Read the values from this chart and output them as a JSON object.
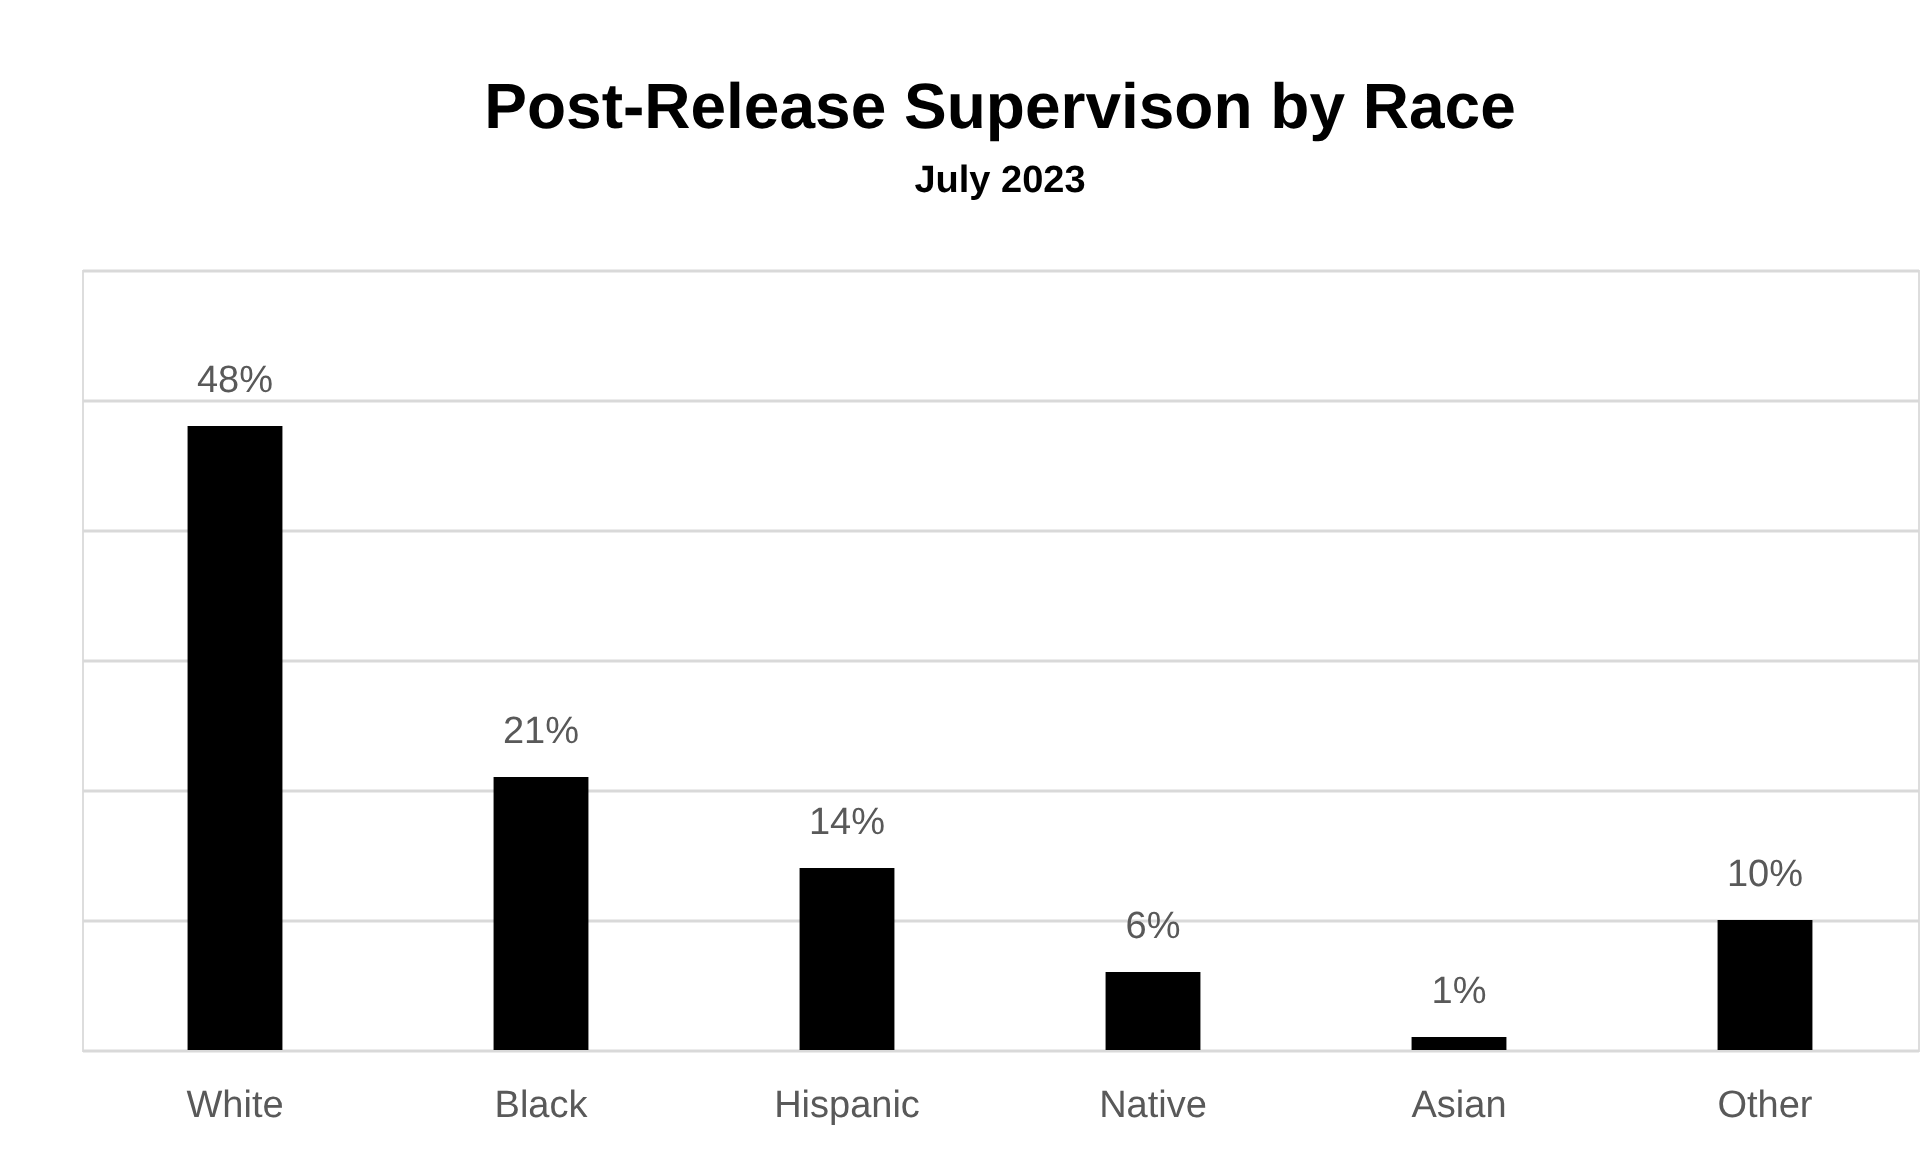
{
  "chart_data": {
    "type": "bar",
    "title": "Post-Release Supervison by Race",
    "subtitle": "July 2023",
    "categories": [
      "White",
      "Black",
      "Hispanic",
      "Native",
      "Asian",
      "Other"
    ],
    "values": [
      48,
      21,
      14,
      6,
      1,
      10
    ],
    "color": "#000000",
    "value_labels": [
      "48%",
      "21%",
      "14%",
      "6%",
      "1%",
      "10%"
    ],
    "ylim": [
      0,
      60
    ],
    "yticks": [
      {
        "value": 0,
        "label": null
      },
      {
        "value": 10,
        "label": null
      },
      {
        "value": 20,
        "label": null
      },
      {
        "value": 30,
        "label": null
      },
      {
        "value": 40,
        "label": null
      },
      {
        "value": 50,
        "label": null
      },
      {
        "value": 60,
        "label": null
      }
    ],
    "grid": "y",
    "tick_labels": "x"
  }
}
